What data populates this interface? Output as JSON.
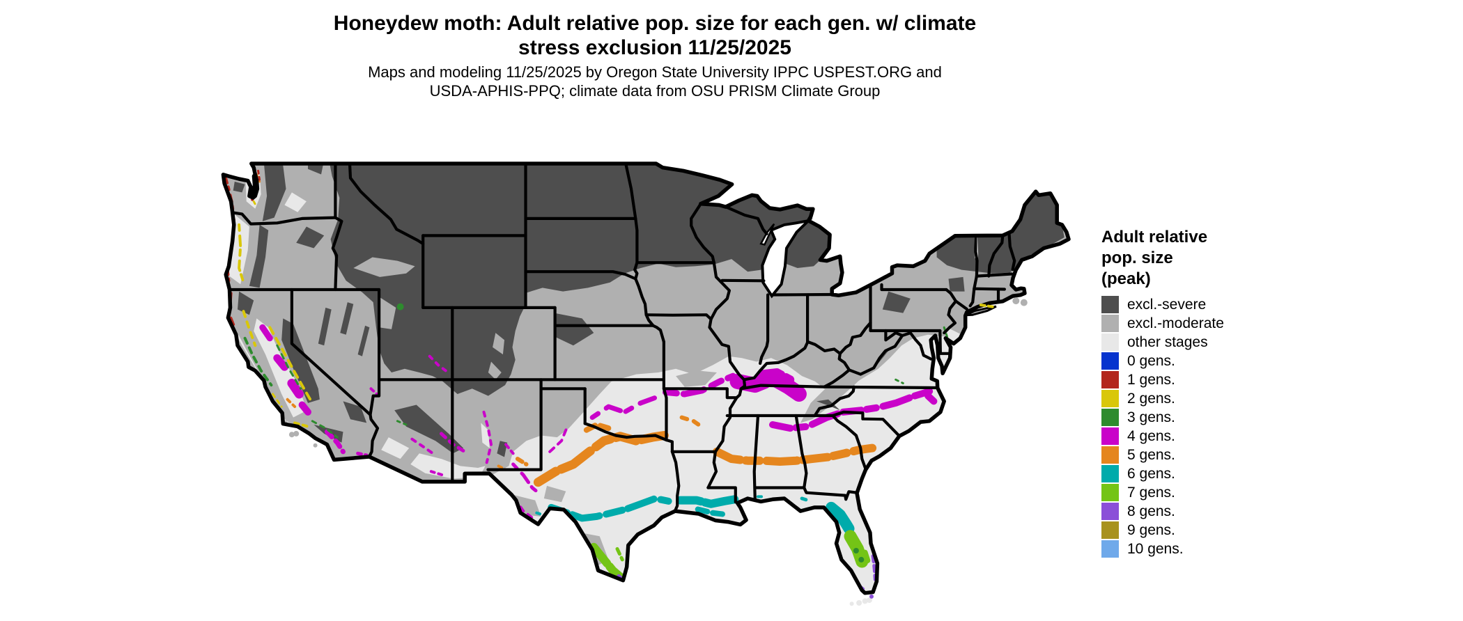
{
  "title": {
    "line1": "Honeydew moth: Adult relative pop. size for each gen. w/ climate",
    "line2": "stress exclusion 11/25/2025"
  },
  "subtitle": {
    "line1": "Maps and modeling 11/25/2025 by Oregon State University IPPC USPEST.ORG and",
    "line2": "USDA-APHIS-PPQ; climate data from OSU PRISM Climate Group"
  },
  "legend": {
    "title_lines": [
      "Adult relative",
      "pop. size",
      "(peak)"
    ],
    "items": [
      {
        "id": "excl-severe",
        "label": "excl.-severe",
        "color": "#4E4E4E"
      },
      {
        "id": "excl-moderate",
        "label": "excl.-moderate",
        "color": "#B0B0B0"
      },
      {
        "id": "other-stages",
        "label": "other stages",
        "color": "#E8E8E8"
      },
      {
        "id": "gens-0",
        "label": "0 gens.",
        "color": "#0633CE"
      },
      {
        "id": "gens-1",
        "label": "1 gens.",
        "color": "#B3261C"
      },
      {
        "id": "gens-2",
        "label": "2 gens.",
        "color": "#D9C70A"
      },
      {
        "id": "gens-3",
        "label": "3 gens.",
        "color": "#2E8B2E"
      },
      {
        "id": "gens-4",
        "label": "4 gens.",
        "color": "#C903C9"
      },
      {
        "id": "gens-5",
        "label": "5 gens.",
        "color": "#E5861E"
      },
      {
        "id": "gens-6",
        "label": "6 gens.",
        "color": "#00ABAB"
      },
      {
        "id": "gens-7",
        "label": "7 gens.",
        "color": "#74C416"
      },
      {
        "id": "gens-8",
        "label": "8 gens.",
        "color": "#8B4FD8"
      },
      {
        "id": "gens-9",
        "label": "9 gens.",
        "color": "#A8921E"
      },
      {
        "id": "gens-10",
        "label": "10 gens.",
        "color": "#6FA9EA"
      }
    ]
  },
  "map": {
    "region": "Continental United States (lower 48 states)",
    "border_color": "#000000",
    "water_color": "#FFFFFF",
    "background_color": "#FFFFFF",
    "observed_distribution": [
      {
        "zone": "northern states and Rockies",
        "class": "excl.-severe"
      },
      {
        "zone": "central corn belt, Great Basin, coastal valleys",
        "class": "excl.-moderate"
      },
      {
        "zone": "southern states",
        "class": "other stages"
      },
      {
        "zone": "band through OK-AR-KY-TN-northern AL/GA-Carolinas, California valleys, NM/AZ uplands",
        "class": "4 gens."
      },
      {
        "zone": "band through central TX-MS-AL-GA to SC coast",
        "class": "5 gens."
      },
      {
        "zone": "band through south-central TX, Louisiana coast, north-central Florida",
        "class": "6 gens."
      },
      {
        "zone": "far south Texas and central-south Florida",
        "class": "7 gens."
      },
      {
        "zone": "southern tips of Texas and Florida",
        "class": "8 gens."
      },
      {
        "zone": "Pacific coastline speckles",
        "class": "1 gens. / 2 gens. / 3 gens."
      }
    ]
  }
}
